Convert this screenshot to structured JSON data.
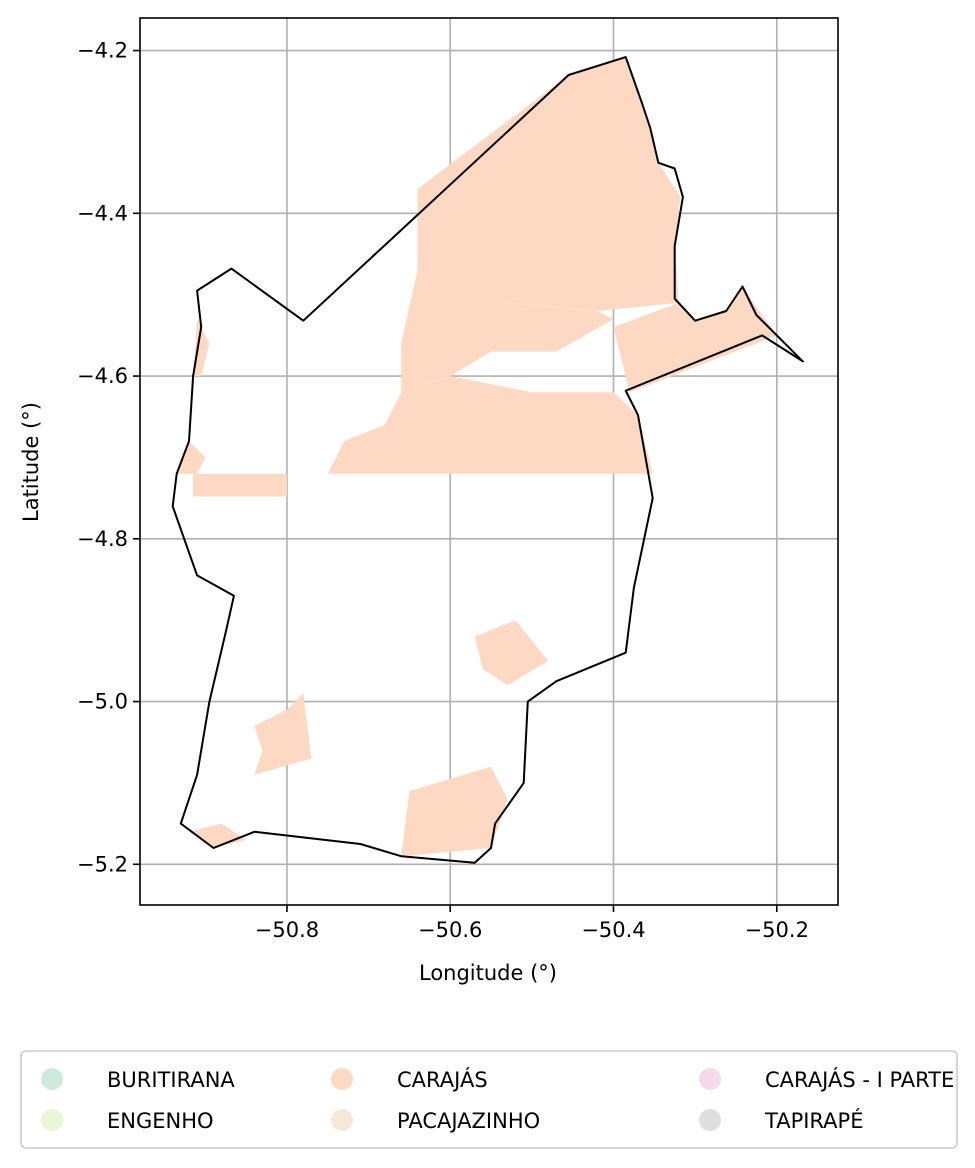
{
  "chart_data": {
    "type": "map",
    "xlabel": "Longitude (°)",
    "ylabel": "Latitude (°)",
    "xlim": [
      -50.98,
      -50.125
    ],
    "ylim": [
      -5.25,
      -4.16
    ],
    "xticks": [
      -50.8,
      -50.6,
      -50.4,
      -50.2
    ],
    "xtick_labels": [
      "−50.8",
      "−50.6",
      "−50.4",
      "−50.2"
    ],
    "yticks": [
      -4.2,
      -4.4,
      -4.6,
      -4.8,
      -5.0,
      -5.2
    ],
    "ytick_labels": [
      "−4.2",
      "−4.4",
      "−4.6",
      "−4.8",
      "−5.0",
      "−5.2"
    ],
    "grid": true,
    "boundary": [
      [
        -50.455,
        -4.23
      ],
      [
        -50.385,
        -4.208
      ],
      [
        -50.365,
        -4.265
      ],
      [
        -50.355,
        -4.295
      ],
      [
        -50.345,
        -4.338
      ],
      [
        -50.325,
        -4.345
      ],
      [
        -50.315,
        -4.38
      ],
      [
        -50.325,
        -4.44
      ],
      [
        -50.325,
        -4.505
      ],
      [
        -50.3,
        -4.532
      ],
      [
        -50.262,
        -4.52
      ],
      [
        -50.242,
        -4.49
      ],
      [
        -50.225,
        -4.525
      ],
      [
        -50.168,
        -4.582
      ],
      [
        -50.218,
        -4.55
      ],
      [
        -50.385,
        -4.618
      ],
      [
        -50.37,
        -4.648
      ],
      [
        -50.352,
        -4.75
      ],
      [
        -50.375,
        -4.86
      ],
      [
        -50.385,
        -4.94
      ],
      [
        -50.47,
        -4.975
      ],
      [
        -50.505,
        -5.0
      ],
      [
        -50.51,
        -5.1
      ],
      [
        -50.545,
        -5.15
      ],
      [
        -50.55,
        -5.18
      ],
      [
        -50.57,
        -5.198
      ],
      [
        -50.66,
        -5.19
      ],
      [
        -50.71,
        -5.175
      ],
      [
        -50.84,
        -5.16
      ],
      [
        -50.89,
        -5.18
      ],
      [
        -50.93,
        -5.15
      ],
      [
        -50.91,
        -5.09
      ],
      [
        -50.895,
        -5.0
      ],
      [
        -50.875,
        -4.915
      ],
      [
        -50.865,
        -4.87
      ],
      [
        -50.91,
        -4.845
      ],
      [
        -50.94,
        -4.76
      ],
      [
        -50.935,
        -4.72
      ],
      [
        -50.92,
        -4.68
      ],
      [
        -50.915,
        -4.6
      ],
      [
        -50.905,
        -4.54
      ],
      [
        -50.91,
        -4.495
      ],
      [
        -50.868,
        -4.468
      ],
      [
        -50.78,
        -4.532
      ]
    ],
    "series": [
      {
        "name": "BURITIRANA",
        "color": "#cfeadd",
        "polygons": []
      },
      {
        "name": "CARAJÁS",
        "color": "#fdd9c3",
        "polygons": [
          [
            [
              -50.455,
              -4.23
            ],
            [
              -50.385,
              -4.208
            ],
            [
              -50.365,
              -4.265
            ],
            [
              -50.345,
              -4.338
            ],
            [
              -50.318,
              -4.38
            ],
            [
              -50.325,
              -4.44
            ],
            [
              -50.32,
              -4.51
            ],
            [
              -50.42,
              -4.52
            ],
            [
              -50.53,
              -4.51
            ],
            [
              -50.64,
              -4.47
            ],
            [
              -50.64,
              -4.37
            ]
          ],
          [
            [
              -50.64,
              -4.37
            ],
            [
              -50.64,
              -4.47
            ],
            [
              -50.66,
              -4.56
            ],
            [
              -50.66,
              -4.62
            ],
            [
              -50.6,
              -4.6
            ],
            [
              -50.55,
              -4.57
            ],
            [
              -50.47,
              -4.57
            ],
            [
              -50.4,
              -4.53
            ],
            [
              -50.42,
              -4.52
            ],
            [
              -50.53,
              -4.51
            ]
          ],
          [
            [
              -50.32,
              -4.51
            ],
            [
              -50.3,
              -4.532
            ],
            [
              -50.262,
              -4.52
            ],
            [
              -50.243,
              -4.49
            ],
            [
              -50.2,
              -4.55
            ],
            [
              -50.38,
              -4.62
            ],
            [
              -50.4,
              -4.54
            ]
          ],
          [
            [
              -50.66,
              -4.62
            ],
            [
              -50.6,
              -4.6
            ],
            [
              -50.5,
              -4.62
            ],
            [
              -50.4,
              -4.62
            ],
            [
              -50.37,
              -4.648
            ],
            [
              -50.352,
              -4.72
            ],
            [
              -50.55,
              -4.72
            ],
            [
              -50.75,
              -4.72
            ],
            [
              -50.73,
              -4.68
            ],
            [
              -50.68,
              -4.66
            ]
          ],
          [
            [
              -50.915,
              -4.72
            ],
            [
              -50.8,
              -4.72
            ],
            [
              -50.8,
              -4.748
            ],
            [
              -50.915,
              -4.748
            ]
          ],
          [
            [
              -50.84,
              -5.03
            ],
            [
              -50.8,
              -5.01
            ],
            [
              -50.78,
              -4.99
            ],
            [
              -50.77,
              -5.07
            ],
            [
              -50.84,
              -5.09
            ],
            [
              -50.83,
              -5.06
            ]
          ],
          [
            [
              -50.65,
              -5.11
            ],
            [
              -50.55,
              -5.08
            ],
            [
              -50.53,
              -5.12
            ],
            [
              -50.55,
              -5.18
            ],
            [
              -50.66,
              -5.19
            ]
          ],
          [
            [
              -50.57,
              -4.92
            ],
            [
              -50.52,
              -4.9
            ],
            [
              -50.48,
              -4.95
            ],
            [
              -50.53,
              -4.98
            ],
            [
              -50.56,
              -4.96
            ]
          ],
          [
            [
              -50.92,
              -5.16
            ],
            [
              -50.88,
              -5.15
            ],
            [
              -50.85,
              -5.17
            ],
            [
              -50.89,
              -5.18
            ]
          ],
          [
            [
              -50.91,
              -4.53
            ],
            [
              -50.895,
              -4.56
            ],
            [
              -50.905,
              -4.6
            ],
            [
              -50.915,
              -4.6
            ]
          ],
          [
            [
              -50.92,
              -4.68
            ],
            [
              -50.9,
              -4.7
            ],
            [
              -50.91,
              -4.72
            ],
            [
              -50.935,
              -4.72
            ]
          ]
        ]
      },
      {
        "name": "CARAJÁS - I PARTE",
        "color": "#f6d9eb",
        "polygons": []
      },
      {
        "name": "ENGENHO",
        "color": "#eaf7d6",
        "polygons": []
      },
      {
        "name": "PACAJAZINHO",
        "color": "#f5e8d9",
        "polygons": []
      },
      {
        "name": "TAPIRAPÉ",
        "color": "#dedede",
        "polygons": []
      }
    ],
    "legend_placement": "bottom-center",
    "legend_columns": 3,
    "boundary_color": "#000000",
    "grid_color": "#b0b0b0"
  }
}
